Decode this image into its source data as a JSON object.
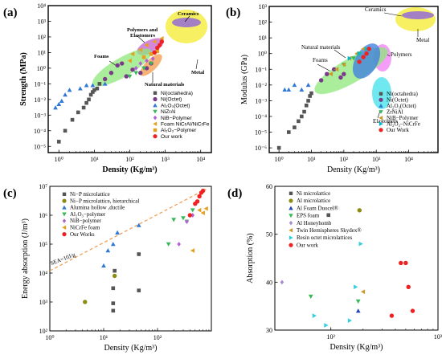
{
  "colors": {
    "grey": "#555555",
    "purple": "#7a3a8a",
    "blue": "#2f78d3",
    "green": "#39b85a",
    "violet": "#b35fd6",
    "orange": "#e5a020",
    "red": "#ee2222",
    "olive": "#8c8c14",
    "teal": "#00b7cf",
    "tan": "#c99a2e",
    "lightpurple": "#a98cd0",
    "darkblue": "#2244bb",
    "cyan": "#33cfe0",
    "dashorange": "#f0a05a"
  },
  "chart_data": [
    {
      "panel": "(a)",
      "type": "scatter",
      "xlabel": "Density (Kg/m³)",
      "ylabel": "Strength (MPa)",
      "xscale": "log",
      "yscale": "log",
      "xlim": [
        0.5,
        20000
      ],
      "ylim": [
        4e-06,
        10000
      ],
      "xticks": [
        "10⁰",
        "10¹",
        "10²",
        "10³",
        "10⁴"
      ],
      "yticks": [
        "10⁻⁵",
        "10⁻⁴",
        "10⁻³",
        "10⁻²",
        "10⁻¹",
        "10⁰",
        "10¹",
        "10²",
        "10³",
        "10⁴"
      ],
      "annotations": [
        "Ceramics",
        "Polymers and Elastomers",
        "Foams",
        "Metal",
        "Natural materials"
      ],
      "series": [
        {
          "name": "Ni(octahedra)",
          "color": "grey",
          "marker": "square",
          "x": [
            1,
            1.5,
            2.4,
            3.5,
            5,
            6,
            7,
            8,
            9,
            10,
            12,
            14
          ],
          "y": [
            2e-05,
            0.0001,
            0.0005,
            0.0015,
            0.003,
            0.006,
            0.01,
            0.02,
            0.03,
            0.04,
            0.05,
            0.1
          ]
        },
        {
          "name": "Ni(Octet)",
          "color": "purple",
          "marker": "circle",
          "x": [
            20,
            30,
            45,
            60,
            80,
            120,
            200,
            300,
            400
          ],
          "y": [
            0.2,
            0.5,
            1.5,
            2,
            0.3,
            0.8,
            0.5,
            1,
            2
          ]
        },
        {
          "name": "Al₂O₃(Octet)",
          "color": "blue",
          "marker": "triangle-up",
          "x": [
            0.8,
            1,
            1.2,
            1.5,
            2,
            4,
            6,
            9,
            20
          ],
          "y": [
            0.003,
            0.005,
            0.008,
            0.02,
            0.04,
            0.05,
            0.08,
            0.08,
            0.1
          ]
        },
        {
          "name": "NiZrAl",
          "color": "green",
          "marker": "triangle-down",
          "x": [
            100,
            150,
            250,
            400
          ],
          "y": [
            0.3,
            0.5,
            1,
            2
          ]
        },
        {
          "name": "NiB−Polymer",
          "color": "violet",
          "marker": "diamond",
          "x": [
            150,
            200,
            300,
            450
          ],
          "y": [
            1,
            2,
            3,
            4
          ]
        },
        {
          "name": "Foam NiCrAl/NiCrFe",
          "color": "orange",
          "marker": "triangle-left",
          "x": [
            100,
            120,
            200,
            300,
            500,
            800
          ],
          "y": [
            3,
            8,
            15,
            30,
            50,
            80
          ]
        },
        {
          "name": "Al₂O₃−Polymer",
          "color": "orange",
          "marker": "square",
          "x": [
            250,
            400,
            600
          ],
          "y": [
            5,
            8,
            12
          ]
        },
        {
          "name": "Our work",
          "color": "red",
          "marker": "circle",
          "x": [
            500,
            600,
            700,
            800
          ],
          "y": [
            10,
            20,
            30,
            50
          ]
        }
      ]
    },
    {
      "panel": "(b)",
      "type": "scatter",
      "xlabel": "Density (Kg/m³)",
      "ylabel": "Modulus (GPa)",
      "xscale": "log",
      "yscale": "log",
      "xlim": [
        0.5,
        80000
      ],
      "ylim": [
        5e-07,
        1000
      ],
      "xticks": [
        "10⁰",
        "10¹",
        "10²",
        "10³",
        "10⁴"
      ],
      "yticks": [
        "10⁻⁶",
        "10⁻⁵",
        "10⁻⁴",
        "10⁻³",
        "10⁻²",
        "10⁻¹",
        "10⁰",
        "10¹",
        "10²",
        "10³"
      ],
      "annotations": [
        "Ceramics",
        "Metal",
        "Natural materials",
        "Polymers",
        "Foams",
        "Elastomers"
      ],
      "series": [
        {
          "name": "Ni(octahedra)",
          "color": "grey",
          "marker": "square",
          "x": [
            1,
            2,
            3,
            4,
            5,
            6,
            7,
            8,
            9,
            10
          ],
          "y": [
            1e-06,
            1e-05,
            2e-05,
            5e-05,
            0.0001,
            0.0002,
            0.0005,
            0.001,
            0.002,
            0.003
          ]
        },
        {
          "name": "Ni(Octet)",
          "color": "purple",
          "marker": "circle",
          "x": [
            20,
            30,
            50,
            80,
            100
          ],
          "y": [
            0.02,
            0.05,
            0.1,
            0.03,
            0.05
          ]
        },
        {
          "name": "Al₂O₃(Octet)",
          "color": "blue",
          "marker": "triangle-up",
          "x": [
            1.5,
            2,
            3,
            5,
            8
          ],
          "y": [
            0.005,
            0.005,
            0.01,
            0.005,
            0.01
          ]
        },
        {
          "name": "ZrNiAl",
          "color": "green",
          "marker": "triangle-down",
          "x": [
            100,
            200,
            300
          ],
          "y": [
            0.2,
            0.5,
            1
          ]
        },
        {
          "name": "NiB−Polymer",
          "color": "tan",
          "marker": "triangle-left",
          "x": [
            40,
            60,
            100,
            150,
            250,
            400
          ],
          "y": [
            0.05,
            0.1,
            0.2,
            0.5,
            1,
            2
          ]
        },
        {
          "name": "Al₂O₃−NiCrFe",
          "color": "teal",
          "marker": "triangle-right",
          "x": [
            150,
            300,
            500
          ],
          "y": [
            0.5,
            1,
            2
          ]
        },
        {
          "name": "Our Work",
          "color": "red",
          "marker": "circle",
          "x": [
            300,
            400,
            500,
            600
          ],
          "y": [
            0.3,
            0.6,
            1,
            2
          ]
        }
      ]
    },
    {
      "panel": "(c)",
      "type": "scatter",
      "xlabel": "Density (Kg/m³)",
      "ylabel": "Energy absorption (J/m³)",
      "xscale": "log",
      "yscale": "log",
      "xlim": [
        1,
        1000
      ],
      "ylim": [
        100,
        10000000
      ],
      "xticks": [
        "10⁰",
        "10¹",
        "10²"
      ],
      "yticks": [
        "10²",
        "10³",
        "10⁴",
        "10⁵",
        "10⁶",
        "10⁷"
      ],
      "annotations": [
        "SEA=10J/g"
      ],
      "series": [
        {
          "name": "Ni−P microlattice",
          "color": "grey",
          "marker": "square",
          "x": [
            15,
            15,
            15,
            16,
            45,
            45
          ],
          "y": [
            500,
            900,
            3000,
            12000,
            2500,
            45000
          ]
        },
        {
          "name": "Ni−P microlattice, hierarchical",
          "color": "olive",
          "marker": "circle",
          "x": [
            4.5,
            16
          ],
          "y": [
            1000,
            8000
          ]
        },
        {
          "name": "Alumina hollow ,ductile",
          "color": "blue",
          "marker": "triangle-up",
          "x": [
            10,
            12,
            15,
            18,
            45
          ],
          "y": [
            18000,
            60000,
            100000,
            250000,
            450000
          ]
        },
        {
          "name": "Al₂O₃−polymer",
          "color": "green",
          "marker": "triangle-down",
          "x": [
            160,
            200,
            300,
            350,
            450
          ],
          "y": [
            100000,
            700000,
            800000,
            600000,
            1500000
          ]
        },
        {
          "name": "NiB−polymer",
          "color": "violet",
          "marker": "diamond",
          "x": [
            250,
            350,
            450
          ],
          "y": [
            100000,
            600000,
            1000000
          ]
        },
        {
          "name": "NiCrFe foam",
          "color": "orange",
          "marker": "triangle-left",
          "x": [
            450,
            600,
            700,
            800
          ],
          "y": [
            60000,
            1500000,
            1200000,
            1700000
          ]
        },
        {
          "name": "Our Works",
          "color": "red",
          "marker": "circle",
          "x": [
            400,
            500,
            550,
            600,
            650,
            700
          ],
          "y": [
            1000000,
            2500000,
            3000000,
            4500000,
            6000000,
            7000000
          ]
        }
      ]
    },
    {
      "panel": "(d)",
      "type": "scatter",
      "xlabel": "Density (Kg/m³)",
      "ylabel": "Absorption (%)",
      "xscale": "log",
      "yscale": "linear",
      "xlim": [
        30,
        1000
      ],
      "ylim": [
        30,
        60
      ],
      "xticks": [
        "10²",
        "10³"
      ],
      "yticks": [
        "30",
        "40",
        "50",
        "60"
      ],
      "series": [
        {
          "name": "Ni microlattice",
          "color": "grey",
          "marker": "square",
          "x": [
            95
          ],
          "y": [
            54
          ]
        },
        {
          "name": "Al microlattice",
          "color": "olive",
          "marker": "circle",
          "x": [
            185
          ],
          "y": [
            55
          ]
        },
        {
          "name": "Al Foam Duocel®",
          "color": "darkblue",
          "marker": "triangle-up",
          "x": [
            180
          ],
          "y": [
            34
          ]
        },
        {
          "name": "EPS foam",
          "color": "green",
          "marker": "triangle-down",
          "x": [
            65,
            180
          ],
          "y": [
            37,
            36
          ]
        },
        {
          "name": "Al Honeyhomb",
          "color": "lightpurple",
          "marker": "diamond",
          "x": [
            35
          ],
          "y": [
            40
          ]
        },
        {
          "name": "Twin Hemispheres Skydex®",
          "color": "tan",
          "marker": "triangle-left",
          "x": [
            200
          ],
          "y": [
            38
          ]
        },
        {
          "name": "Resin octet microlattices",
          "color": "cyan",
          "marker": "triangle-right",
          "x": [
            70,
            90,
            150,
            170,
            190
          ],
          "y": [
            33,
            31,
            32,
            39,
            48
          ]
        },
        {
          "name": "Our work",
          "color": "red",
          "marker": "circle",
          "x": [
            370,
            450,
            500,
            530,
            580
          ],
          "y": [
            33,
            44,
            44,
            39,
            34
          ]
        }
      ]
    }
  ]
}
